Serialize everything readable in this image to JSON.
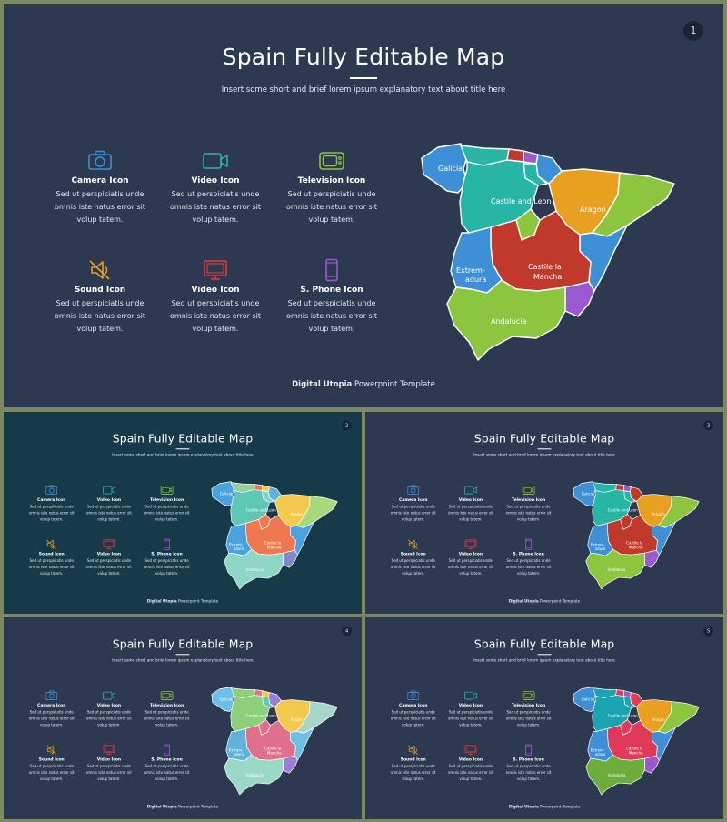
{
  "slides": [
    {
      "number": "1",
      "theme": "navy"
    },
    {
      "number": "2",
      "theme": "teal"
    },
    {
      "number": "3",
      "theme": "navy"
    },
    {
      "number": "4",
      "theme": "navy"
    },
    {
      "number": "5",
      "theme": "navy"
    }
  ],
  "title": "Spain Fully Editable Map",
  "subtitle": "Insert some short and brief lorem ipsum explanatory text about title here",
  "icons": [
    {
      "label": "Camera Icon",
      "icon": "camera-icon",
      "color": "#3d8fd6",
      "desc": "Sed ut perspiciatis unde omnis iste natus error sit volup tatem."
    },
    {
      "label": "Video Icon",
      "icon": "video-camera-icon",
      "color": "#27b5a6",
      "desc": "Sed ut perspiciatis unde omnis iste natus error sit volup tatem."
    },
    {
      "label": "Television Icon",
      "icon": "television-icon",
      "color": "#8cc63f",
      "desc": "Sed ut perspiciatis unde omnis iste natus error sit volup tatem."
    },
    {
      "label": "Sound Icon",
      "icon": "sound-off-icon",
      "color": "#e8a020",
      "desc": "Sed ut perspiciatis unde omnis iste natus error sit volup tatem."
    },
    {
      "label": "Video Icon",
      "icon": "monitor-icon",
      "color": "#e03a3a",
      "desc": "Sed ut perspiciatis unde omnis iste natus error sit volup tatem."
    },
    {
      "label": "S. Phone Icon",
      "icon": "smartphone-icon",
      "color": "#9b59d0",
      "desc": "Sed ut perspiciatis unde omnis iste natus error sit volup tatem."
    }
  ],
  "map": {
    "labels": {
      "galicia": "Galicia",
      "castile_leon": "Castile and Leon",
      "aragon": "Aragon",
      "extremadura_1": "Extrem-",
      "extremadura_2": "adura",
      "castile_mancha_1": "Castile  la",
      "castile_mancha_2": "Mancha",
      "andalucia": "Andalucia"
    }
  },
  "footer": {
    "brand": "Digital Utopia",
    "text": " Powerpoint Template"
  }
}
